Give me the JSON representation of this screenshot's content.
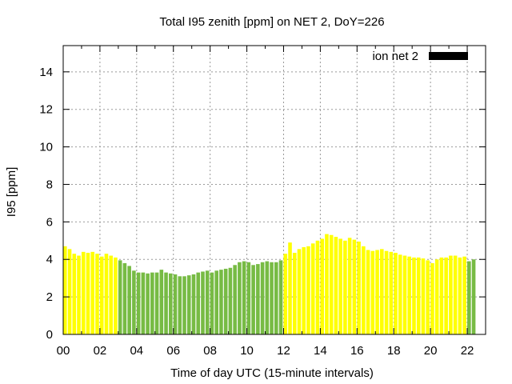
{
  "chart_data": {
    "type": "bar",
    "title": "Total I95 zenith [ppm] on NET 2, DoY=226",
    "xlabel": "Time of day UTC (15-minute intervals)",
    "ylabel": "I95 [ppm]",
    "xlim": [
      0,
      23
    ],
    "ylim": [
      0,
      15.4
    ],
    "x_ticks": [
      "00",
      "02",
      "04",
      "06",
      "08",
      "10",
      "12",
      "14",
      "16",
      "18",
      "20",
      "22"
    ],
    "y_ticks": [
      "0",
      "2",
      "4",
      "6",
      "8",
      "10",
      "12",
      "14"
    ],
    "grid": true,
    "legend": {
      "position": "top-right",
      "entries": [
        {
          "label": "ion net 2",
          "color": "#000000"
        }
      ]
    },
    "x_start": 0,
    "x_step": 0.25,
    "category_colors": {
      "yellow": "#ffff00",
      "green": "#77bb44"
    },
    "series": [
      {
        "values": [
          4.7,
          4.55,
          4.3,
          4.2,
          4.4,
          4.35,
          4.4,
          4.3,
          4.15,
          4.3,
          4.2,
          4.1,
          3.95,
          3.8,
          3.65,
          3.4,
          3.3,
          3.3,
          3.25,
          3.3,
          3.3,
          3.45,
          3.3,
          3.25,
          3.2,
          3.1,
          3.1,
          3.15,
          3.2,
          3.3,
          3.35,
          3.4,
          3.3,
          3.4,
          3.45,
          3.5,
          3.55,
          3.7,
          3.85,
          3.9,
          3.85,
          3.7,
          3.75,
          3.85,
          3.9,
          3.85,
          3.85,
          3.95,
          4.3,
          4.9,
          4.35,
          4.55,
          4.65,
          4.7,
          4.85,
          5.0,
          5.1,
          5.35,
          5.3,
          5.2,
          5.1,
          5.0,
          5.15,
          5.05,
          4.95,
          4.7,
          4.5,
          4.45,
          4.5,
          4.55,
          4.45,
          4.4,
          4.35,
          4.25,
          4.2,
          4.15,
          4.1,
          4.1,
          4.05,
          3.95,
          3.8,
          4.0,
          4.1,
          4.1,
          4.2,
          4.2,
          4.1,
          4.15,
          3.9,
          4.0
        ],
        "categories": [
          "y",
          "y",
          "y",
          "y",
          "y",
          "y",
          "y",
          "y",
          "y",
          "y",
          "y",
          "y",
          "g",
          "g",
          "g",
          "g",
          "g",
          "g",
          "g",
          "g",
          "g",
          "g",
          "g",
          "g",
          "g",
          "g",
          "g",
          "g",
          "g",
          "g",
          "g",
          "g",
          "g",
          "g",
          "g",
          "g",
          "g",
          "g",
          "g",
          "g",
          "g",
          "g",
          "g",
          "g",
          "g",
          "g",
          "g",
          "g",
          "y",
          "y",
          "y",
          "y",
          "y",
          "y",
          "y",
          "y",
          "y",
          "y",
          "y",
          "y",
          "y",
          "y",
          "y",
          "y",
          "y",
          "y",
          "y",
          "y",
          "y",
          "y",
          "y",
          "y",
          "y",
          "y",
          "y",
          "y",
          "y",
          "y",
          "y",
          "y",
          "y",
          "y",
          "y",
          "y",
          "y",
          "y",
          "y",
          "y",
          "g",
          "g"
        ]
      }
    ]
  }
}
